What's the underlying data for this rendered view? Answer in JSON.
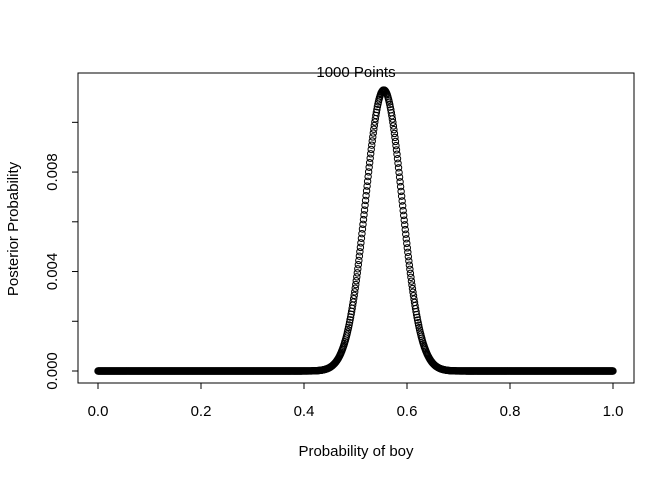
{
  "chart_data": {
    "type": "scatter",
    "title": "1000 Points",
    "xlabel": "Probability of boy",
    "ylabel": "Posterior Probability",
    "xlim": [
      0.0,
      1.0
    ],
    "ylim": [
      0.0,
      0.0113
    ],
    "xticks": [
      0.0,
      0.2,
      0.4,
      0.6,
      0.8,
      1.0
    ],
    "xtick_labels": [
      "0.0",
      "0.2",
      "0.4",
      "0.6",
      "0.8",
      "1.0"
    ],
    "yticks": [
      0.0,
      0.002,
      0.004,
      0.006,
      0.008,
      0.01
    ],
    "ytick_labels": [
      "0.000",
      "",
      "0.004",
      "",
      "0.008",
      ""
    ],
    "n_points": 1000,
    "peak_x": 0.555,
    "peak_y": 0.0113,
    "spread_sd": 0.0355,
    "grid": false,
    "legend": "none",
    "marker": "open-circle",
    "marker_color": "#000000"
  }
}
